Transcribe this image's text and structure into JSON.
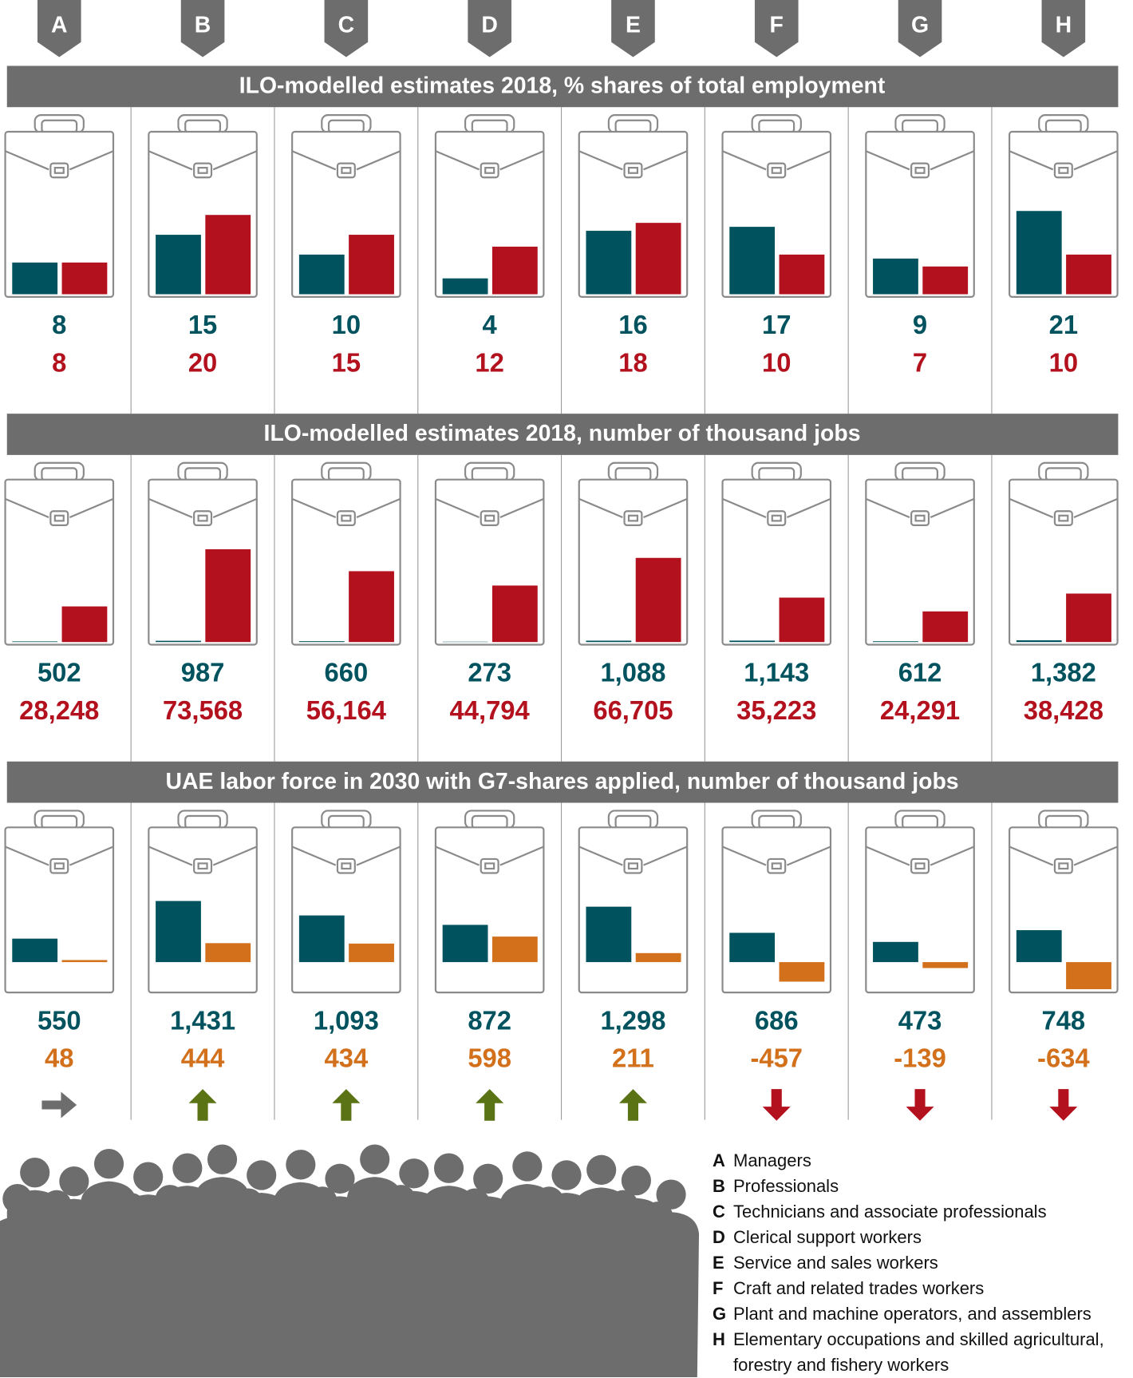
{
  "chart_data": [
    {
      "type": "bar",
      "title": "ILO-modelled estimates 2018, % shares of total employment",
      "categories": [
        "A",
        "B",
        "C",
        "D",
        "E",
        "F",
        "G",
        "H"
      ],
      "series": [
        {
          "color": "#00535e",
          "values": [
            8,
            15,
            10,
            4,
            16,
            17,
            9,
            21
          ]
        },
        {
          "color": "#b2111d",
          "values": [
            8,
            20,
            15,
            12,
            18,
            10,
            7,
            10
          ]
        }
      ],
      "ylim": [
        0,
        35
      ]
    },
    {
      "type": "bar",
      "title": "ILO-modelled estimates 2018, number of thousand jobs",
      "categories": [
        "A",
        "B",
        "C",
        "D",
        "E",
        "F",
        "G",
        "H"
      ],
      "series": [
        {
          "color": "#00535e",
          "values": [
            502,
            987,
            660,
            273,
            1088,
            1143,
            612,
            1382
          ],
          "value_labels": [
            "502",
            "987",
            "660",
            "273",
            "1,088",
            "1,143",
            "612",
            "1,382"
          ]
        },
        {
          "color": "#b2111d",
          "values": [
            28248,
            73568,
            56164,
            44794,
            66705,
            35223,
            24291,
            38428
          ],
          "value_labels": [
            "28,248",
            "73,568",
            "56,164",
            "44,794",
            "66,705",
            "35,223",
            "24,291",
            "38,428"
          ]
        }
      ],
      "ylim": [
        0,
        110000
      ]
    },
    {
      "type": "bar",
      "title": "UAE labor force in 2030 with G7-shares applied, number of thousand jobs",
      "categories": [
        "A",
        "B",
        "C",
        "D",
        "E",
        "F",
        "G",
        "H"
      ],
      "series": [
        {
          "color": "#00535e",
          "values": [
            550,
            1431,
            1093,
            872,
            1298,
            686,
            473,
            748
          ],
          "value_labels": [
            "550",
            "1,431",
            "1,093",
            "872",
            "1,298",
            "686",
            "473",
            "748"
          ]
        },
        {
          "color": "#d2701c",
          "values": [
            48,
            444,
            434,
            598,
            211,
            -457,
            -139,
            -634
          ]
        }
      ],
      "ylim": [
        -650,
        2600
      ],
      "trend": [
        "right",
        "up",
        "up",
        "up",
        "up",
        "down",
        "down",
        "down"
      ],
      "trend_colors": {
        "right": "#6d6d6d",
        "up": "#5a7314",
        "down": "#b2111d"
      }
    }
  ],
  "legend": [
    {
      "code": "A",
      "name": "Managers"
    },
    {
      "code": "B",
      "name": "Professionals"
    },
    {
      "code": "C",
      "name": "Technicians and associate professionals"
    },
    {
      "code": "D",
      "name": "Clerical support workers"
    },
    {
      "code": "E",
      "name": "Service and sales workers"
    },
    {
      "code": "F",
      "name": "Craft and related trades workers"
    },
    {
      "code": "G",
      "name": "Plant and machine operators, and assemblers"
    },
    {
      "code": "H",
      "name": "Elementary occupations and skilled agricultural, forestry and fishery workers"
    }
  ]
}
